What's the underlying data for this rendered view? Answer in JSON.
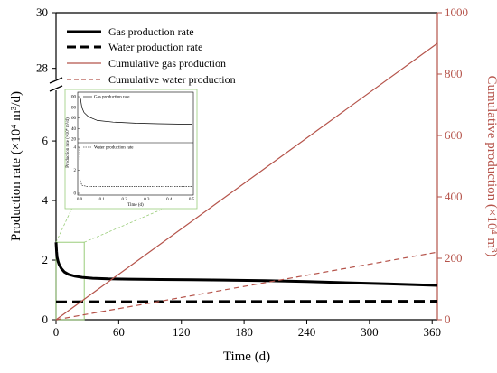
{
  "chart_data": {
    "type": "line",
    "xlabel": "Time (d)",
    "ylabel_left": "Production rate (×10⁴ m³/d)",
    "ylabel_right": "Cumulative production (×10⁴ m³)",
    "x_ticks": [
      "0",
      "60",
      "120",
      "180",
      "240",
      "300",
      "360"
    ],
    "xlim": [
      0,
      365
    ],
    "y_left_ticks_lower": [
      "0",
      "2",
      "4",
      "6"
    ],
    "y_left_ticks_upper": [
      "28",
      "30"
    ],
    "y_left_lower_range": [
      0,
      7.7
    ],
    "y_left_upper_range": [
      27.6,
      30
    ],
    "y_right_ticks": [
      "0",
      "200",
      "400",
      "600",
      "800",
      "1000"
    ],
    "y_right_range": [
      0,
      1000
    ],
    "legend_position": "top-left",
    "series": [
      {
        "name": "Gas production rate",
        "axis": "left",
        "color": "#000000",
        "style": "solid",
        "x": [
          0,
          0.5,
          1,
          2,
          3,
          5,
          8,
          12,
          18,
          25,
          35,
          50,
          70,
          100,
          130,
          160,
          200,
          240,
          280,
          320,
          365
        ],
        "y": [
          2.6,
          2.3,
          2.1,
          1.95,
          1.85,
          1.72,
          1.6,
          1.52,
          1.46,
          1.42,
          1.39,
          1.37,
          1.36,
          1.35,
          1.34,
          1.33,
          1.31,
          1.28,
          1.24,
          1.2,
          1.15
        ]
      },
      {
        "name": "Water production rate",
        "axis": "left",
        "color": "#000000",
        "style": "dashed",
        "x": [
          0,
          5,
          365
        ],
        "y": [
          0.6,
          0.6,
          0.62
        ]
      },
      {
        "name": "Cumulative gas production",
        "axis": "right",
        "color": "#b5534a",
        "style": "solid",
        "x": [
          0,
          365
        ],
        "y": [
          0,
          900
        ]
      },
      {
        "name": "Cumulative water production",
        "axis": "right",
        "color": "#b5534a",
        "style": "dashed",
        "x": [
          0,
          365
        ],
        "y": [
          0,
          220
        ]
      }
    ],
    "inset": {
      "xlabel": "Time (d)",
      "ylabel": "Production rate (×10⁴ m³/d)",
      "x_ticks": [
        "0.0",
        "0.1",
        "0.2",
        "0.3",
        "0.4",
        "0.5"
      ],
      "y_ticks_upper": [
        "20",
        "40",
        "60",
        "80",
        "100"
      ],
      "y_ticks_lower": [
        "0",
        "2",
        "4"
      ],
      "legend_upper": "Gas production rate",
      "legend_lower": "Water production rate",
      "zoom_box": {
        "x_range": [
          0,
          27
        ],
        "y_range": [
          0,
          2.6
        ]
      }
    },
    "colors": {
      "axis": "#000000",
      "right_axis": "#b5534a",
      "zoom": "#9acd7a"
    }
  }
}
